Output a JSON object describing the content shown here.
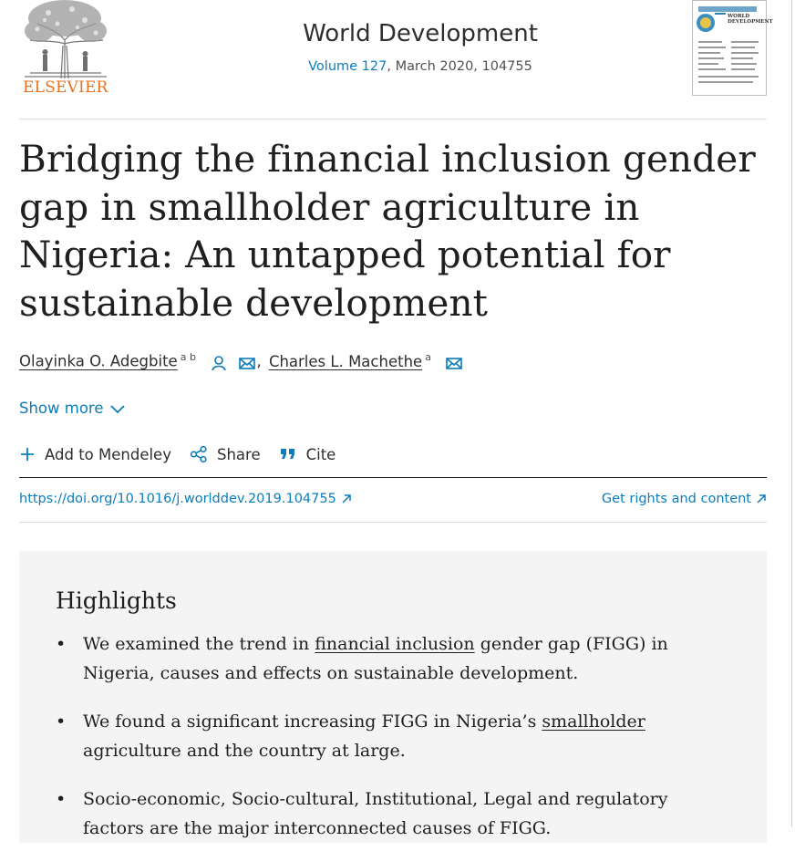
{
  "header": {
    "publisher": "ELSEVIER",
    "journal": "World Development",
    "volume_link": "Volume 127",
    "issue_rest": ", March 2020, 104755",
    "cover_title": "WORLD DEVELOPMENT"
  },
  "article": {
    "title": "Bridging the financial inclusion gender gap in smallholder agriculture in Nigeria: An untapped potential for sustainable development",
    "authors": [
      {
        "name": "Olayinka O. Adegbite",
        "aff": "a b"
      },
      {
        "name": "Charles L. Machethe",
        "aff": "a"
      }
    ],
    "author_separator": ",",
    "show_more": "Show more"
  },
  "actions": {
    "mendeley": "Add to Mendeley",
    "share": "Share",
    "cite": "Cite"
  },
  "links": {
    "doi": "https://doi.org/10.1016/j.worlddev.2019.104755",
    "rights": "Get rights and content"
  },
  "highlights": {
    "heading": "Highlights",
    "bullet": "•",
    "items": [
      {
        "pre": "We examined the trend in ",
        "link": "financial inclusion",
        "post": " gender gap (FIGG) in Nigeria, causes and effects on sustainable development."
      },
      {
        "pre": "We found a significant increasing FIGG in Nigeria’s ",
        "link": "smallholder",
        "post": " agriculture and the country at large."
      },
      {
        "pre": "Socio-economic, Socio-cultural, Institutional, Legal and regulatory factors are the major interconnected causes of FIGG.",
        "link": "",
        "post": ""
      }
    ]
  },
  "colors": {
    "link": "#0c7dbb",
    "brand_orange": "#e9711c",
    "highlights_bg": "#f4f4f4"
  }
}
